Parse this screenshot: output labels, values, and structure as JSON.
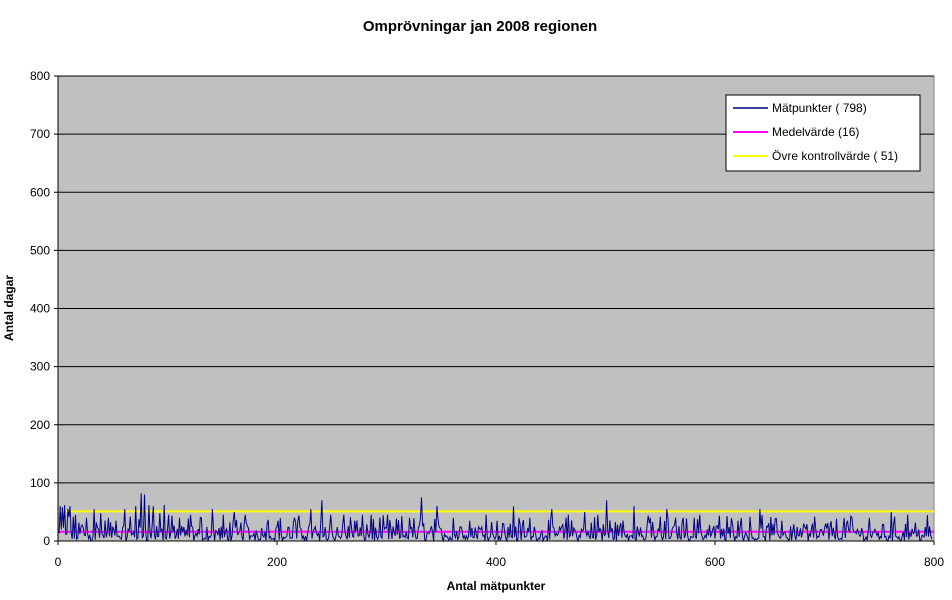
{
  "chart_data": {
    "type": "line",
    "title": "Omprövningar jan 2008 regionen",
    "xlabel": "Antal mätpunkter",
    "ylabel": "Antal dagar",
    "xlim": [
      0,
      800
    ],
    "ylim": [
      0,
      800
    ],
    "x_ticks": [
      "0",
      "200",
      "400",
      "600",
      "800"
    ],
    "y_ticks": [
      "0",
      "100",
      "200",
      "300",
      "400",
      "500",
      "600",
      "700",
      "800"
    ],
    "grid": "horizontal",
    "legend_position": "top-right",
    "plot_background": "#c0c0c0",
    "series": [
      {
        "name": "Mätpunkter ( 798)",
        "color": "#000080",
        "count": 798,
        "peaks": [
          [
            1,
            60
          ],
          [
            3,
            58
          ],
          [
            5,
            62
          ],
          [
            8,
            55
          ],
          [
            10,
            60
          ],
          [
            15,
            45
          ],
          [
            20,
            25
          ],
          [
            25,
            40
          ],
          [
            32,
            55
          ],
          [
            38,
            48
          ],
          [
            45,
            40
          ],
          [
            52,
            35
          ],
          [
            60,
            55
          ],
          [
            65,
            42
          ],
          [
            70,
            60
          ],
          [
            75,
            82
          ],
          [
            78,
            80
          ],
          [
            82,
            62
          ],
          [
            86,
            60
          ],
          [
            92,
            48
          ],
          [
            96,
            62
          ],
          [
            100,
            45
          ],
          [
            110,
            40
          ],
          [
            120,
            45
          ],
          [
            130,
            40
          ],
          [
            140,
            55
          ],
          [
            150,
            45
          ],
          [
            160,
            50
          ],
          [
            170,
            45
          ],
          [
            190,
            30
          ],
          [
            200,
            35
          ],
          [
            215,
            40
          ],
          [
            230,
            55
          ],
          [
            240,
            70
          ],
          [
            248,
            45
          ],
          [
            260,
            45
          ],
          [
            270,
            35
          ],
          [
            285,
            45
          ],
          [
            300,
            45
          ],
          [
            320,
            40
          ],
          [
            331,
            75
          ],
          [
            345,
            60
          ],
          [
            360,
            40
          ],
          [
            375,
            35
          ],
          [
            390,
            45
          ],
          [
            400,
            35
          ],
          [
            415,
            60
          ],
          [
            430,
            40
          ],
          [
            450,
            55
          ],
          [
            465,
            45
          ],
          [
            480,
            50
          ],
          [
            492,
            45
          ],
          [
            500,
            70
          ],
          [
            515,
            35
          ],
          [
            525,
            60
          ],
          [
            540,
            40
          ],
          [
            555,
            55
          ],
          [
            570,
            40
          ],
          [
            585,
            45
          ],
          [
            600,
            25
          ],
          [
            620,
            35
          ],
          [
            640,
            55
          ],
          [
            660,
            35
          ],
          [
            680,
            30
          ],
          [
            700,
            30
          ],
          [
            720,
            35
          ],
          [
            740,
            40
          ],
          [
            760,
            50
          ],
          [
            775,
            45
          ],
          [
            785,
            20
          ]
        ]
      },
      {
        "name": "Medelvärde (16)",
        "color": "#ff00ff",
        "value": 16
      },
      {
        "name": "Övre kontrollvärde ( 51)",
        "color": "#ffff00",
        "value": 51
      }
    ]
  }
}
